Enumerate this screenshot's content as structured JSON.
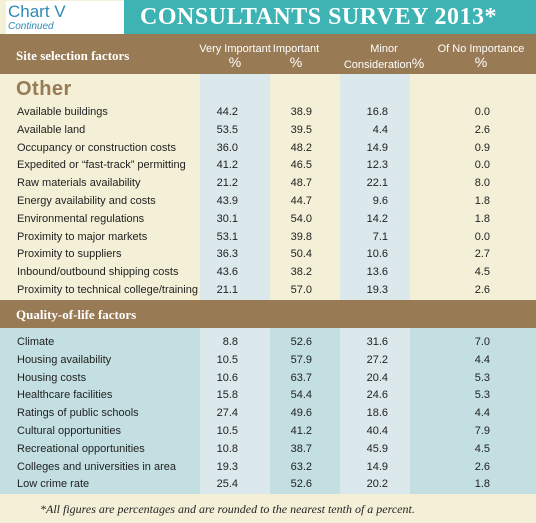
{
  "header": {
    "chart_label": "Chart V",
    "continued": "Continued",
    "survey_title": "CONSULTANTS SURVEY 2013*"
  },
  "columns": {
    "factor": "Site selection factors",
    "very_important": "Very Important",
    "important": "Important",
    "minor": "Minor Consideration",
    "none": "Of No Importance",
    "pct": "%"
  },
  "other": {
    "heading": "Other",
    "rows": [
      {
        "label": "Available buildings",
        "values": [
          "44.2",
          "38.9",
          "16.8",
          "0.0"
        ]
      },
      {
        "label": "Available land",
        "values": [
          "53.5",
          "39.5",
          "4.4",
          "2.6"
        ]
      },
      {
        "label": "Occupancy or construction costs",
        "values": [
          "36.0",
          "48.2",
          "14.9",
          "0.9"
        ]
      },
      {
        "label": "Expedited or “fast-track” permitting",
        "values": [
          "41.2",
          "46.5",
          "12.3",
          "0.0"
        ]
      },
      {
        "label": "Raw materials availability",
        "values": [
          "21.2",
          "48.7",
          "22.1",
          "8.0"
        ]
      },
      {
        "label": "Energy availability and costs",
        "values": [
          "43.9",
          "44.7",
          "9.6",
          "1.8"
        ]
      },
      {
        "label": "Environmental regulations",
        "values": [
          "30.1",
          "54.0",
          "14.2",
          "1.8"
        ]
      },
      {
        "label": "Proximity to major markets",
        "values": [
          "53.1",
          "39.8",
          "7.1",
          "0.0"
        ]
      },
      {
        "label": "Proximity to suppliers",
        "values": [
          "36.3",
          "50.4",
          "10.6",
          "2.7"
        ]
      },
      {
        "label": "Inbound/outbound shipping costs",
        "values": [
          "43.6",
          "38.2",
          "13.6",
          "4.5"
        ]
      },
      {
        "label": "Proximity to technical college/training",
        "values": [
          "21.1",
          "57.0",
          "19.3",
          "2.6"
        ]
      }
    ]
  },
  "quality_of_life": {
    "heading": "Quality-of-life factors",
    "rows": [
      {
        "label": "Climate",
        "values": [
          "8.8",
          "52.6",
          "31.6",
          "7.0"
        ]
      },
      {
        "label": "Housing availability",
        "values": [
          "10.5",
          "57.9",
          "27.2",
          "4.4"
        ]
      },
      {
        "label": "Housing costs",
        "values": [
          "10.6",
          "63.7",
          "20.4",
          "5.3"
        ]
      },
      {
        "label": "Healthcare facilities",
        "values": [
          "15.8",
          "54.4",
          "24.6",
          "5.3"
        ]
      },
      {
        "label": "Ratings of public schools",
        "values": [
          "27.4",
          "49.6",
          "18.6",
          "4.4"
        ]
      },
      {
        "label": "Cultural opportunities",
        "values": [
          "10.5",
          "41.2",
          "40.4",
          "7.9"
        ]
      },
      {
        "label": "Recreational opportunities",
        "values": [
          "10.8",
          "38.7",
          "45.9",
          "4.5"
        ]
      },
      {
        "label": "Colleges and universities in area",
        "values": [
          "19.3",
          "63.2",
          "14.9",
          "2.6"
        ]
      },
      {
        "label": "Low crime rate",
        "values": [
          "25.4",
          "52.6",
          "20.2",
          "1.8"
        ]
      }
    ]
  },
  "footnote": "*All figures are percentages and are rounded to the nearest tenth of a percent.",
  "colors": {
    "header_band": "#987a54",
    "banner": "#3eb3b4",
    "page_bg": "#f4f0d8",
    "qol_bg": "#c3dfe2",
    "column_highlight": "#dbe8ec",
    "title_blue": "#2d8ab3"
  }
}
